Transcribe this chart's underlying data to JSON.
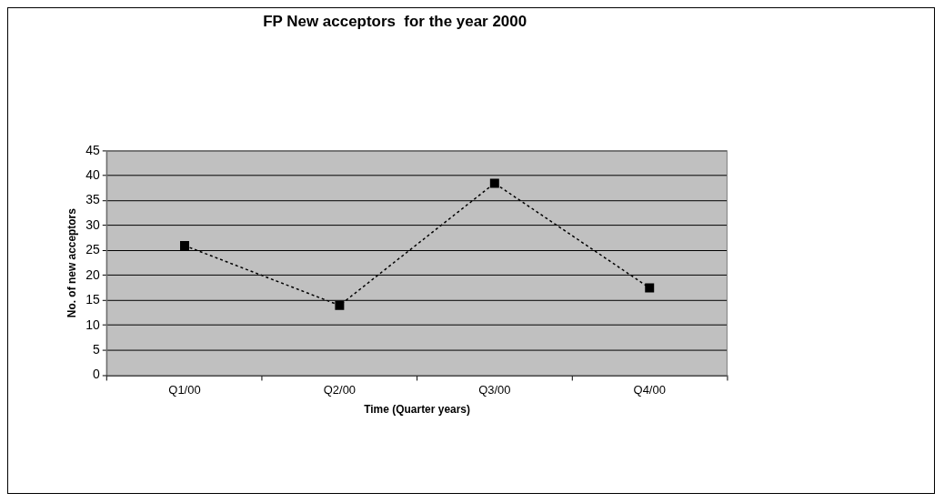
{
  "chart_data": {
    "type": "line",
    "title": "FP New acceptors  for the year 2000",
    "xlabel": "Time (Quarter years)",
    "ylabel": "No. of new acceptors",
    "categories": [
      "Q1/00",
      "Q2/00",
      "Q3/00",
      "Q4/00"
    ],
    "series": [
      {
        "color": "#000000",
        "values": [
          26,
          14,
          38.5,
          17.5
        ]
      }
    ],
    "ylim": [
      0,
      45
    ],
    "yticks": [
      0,
      5,
      10,
      15,
      20,
      25,
      30,
      35,
      40,
      45
    ],
    "grid": "y",
    "legend": false,
    "marker": "square",
    "line_style": "dotted"
  }
}
